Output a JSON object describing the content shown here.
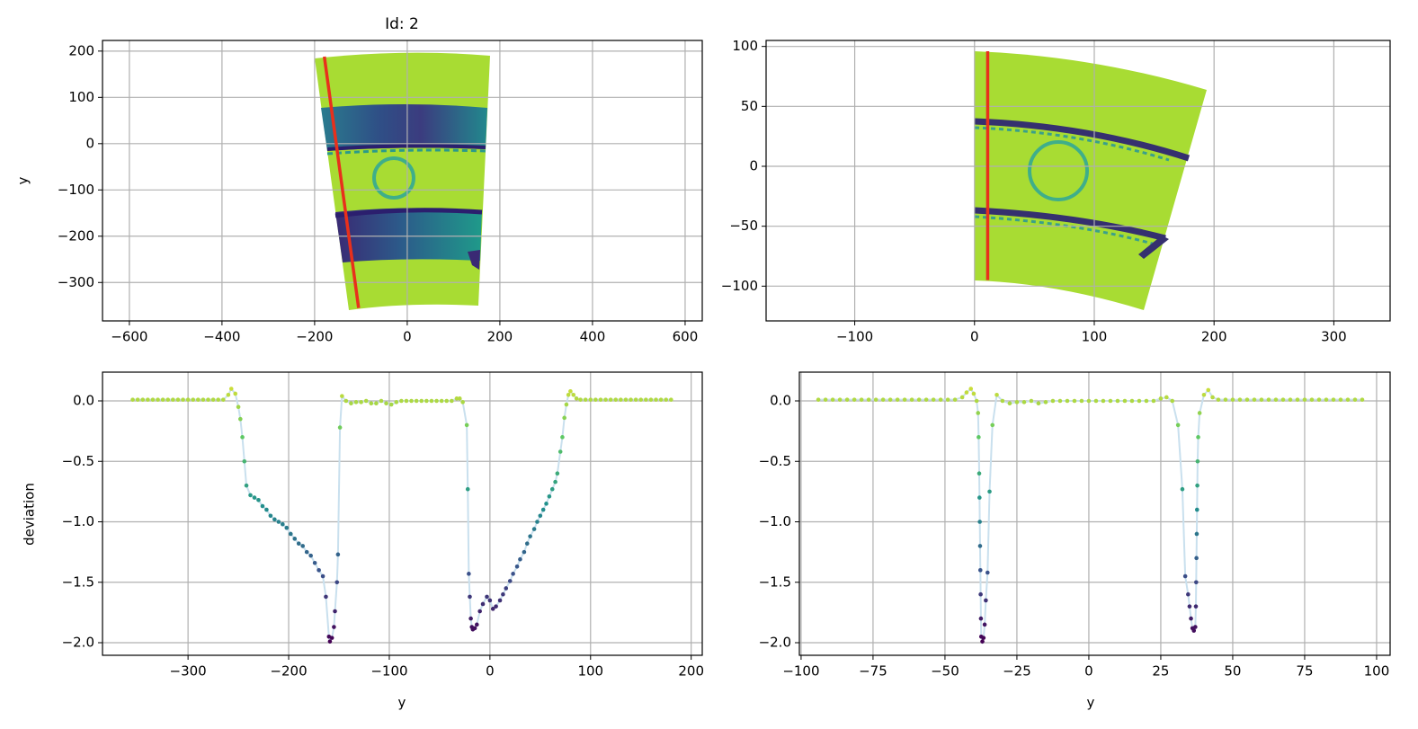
{
  "chart_data": [
    {
      "type": "image",
      "title": "Id: 2",
      "y_label": "y",
      "xlim": [
        -658,
        637
      ],
      "ylim": [
        -383,
        223
      ],
      "xticks": [
        {
          "value": -600,
          "label": "−600"
        },
        {
          "value": -400,
          "label": "−400"
        },
        {
          "value": -200,
          "label": "−200"
        },
        0,
        200,
        400,
        600
      ],
      "yticks": [
        {
          "value": -300,
          "label": "−300"
        },
        {
          "value": -200,
          "label": "−200"
        },
        {
          "value": -100,
          "label": "−100"
        },
        0,
        100,
        200
      ],
      "grid": true,
      "overlay": {
        "color": "#e8301c",
        "x": [
          -179,
          -105
        ],
        "y": [
          188,
          -355
        ]
      }
    },
    {
      "type": "image",
      "xlim": [
        -174,
        347
      ],
      "ylim": [
        -129,
        105
      ],
      "xticks": [
        {
          "value": -100,
          "label": "−100"
        },
        0,
        100,
        200,
        300
      ],
      "yticks": [
        {
          "value": -100,
          "label": "−100"
        },
        {
          "value": -50,
          "label": "−50"
        },
        0,
        50,
        100
      ],
      "grid": true,
      "overlay": {
        "color": "#e8301c",
        "x": [
          11,
          11
        ],
        "y": [
          96,
          -95
        ]
      }
    },
    {
      "type": "scatter",
      "x_label": "y",
      "y_label": "deviation",
      "xlim": [
        -385,
        211
      ],
      "ylim": [
        -2.104,
        0.238
      ],
      "xticks": [
        {
          "value": -300,
          "label": "−300"
        },
        {
          "value": -200,
          "label": "−200"
        },
        {
          "value": -100,
          "label": "−100"
        },
        0,
        100,
        200
      ],
      "yticks": [
        {
          "value": -2,
          "label": "−2.0"
        },
        {
          "value": -1.5,
          "label": "−1.5"
        },
        {
          "value": -1,
          "label": "−1.0"
        },
        {
          "value": -0.5,
          "label": "−0.5"
        },
        {
          "value": 0,
          "label": "0.0"
        }
      ],
      "grid": true,
      "colormap": "viridis",
      "line_color": "#c9e0ee",
      "x": [
        -355,
        -350,
        -345,
        -340,
        -335,
        -330,
        -325,
        -320,
        -315,
        -310,
        -305,
        -300,
        -295,
        -290,
        -285,
        -280,
        -275,
        -270,
        -265,
        -260,
        -257,
        -253,
        -250,
        -248,
        -246,
        -244,
        -242,
        -238,
        -234,
        -230,
        -226,
        -222,
        -218,
        -214,
        -210,
        -206,
        -202,
        -198,
        -194,
        -190,
        -186,
        -182,
        -178,
        -174,
        -170,
        -166,
        -163,
        -160,
        -159,
        -157,
        -155,
        -154,
        -152,
        -151,
        -149,
        -147,
        -143,
        -138,
        -133,
        -128,
        -123,
        -118,
        -113,
        -108,
        -103,
        -98,
        -93,
        -88,
        -83,
        -78,
        -73,
        -68,
        -63,
        -58,
        -53,
        -48,
        -43,
        -38,
        -33,
        -30,
        -27,
        -23,
        -22,
        -21,
        -20,
        -19,
        -18,
        -17,
        -15,
        -13,
        -10,
        -7,
        -3,
        0,
        3,
        6,
        10,
        13,
        16,
        20,
        23,
        27,
        30,
        34,
        37,
        40,
        44,
        47,
        50,
        53,
        56,
        59,
        62,
        65,
        67,
        70,
        72,
        74,
        76,
        78,
        80,
        83,
        86,
        90,
        95,
        100,
        105,
        110,
        115,
        120,
        125,
        130,
        135,
        140,
        145,
        150,
        155,
        160,
        165,
        170,
        175,
        180
      ],
      "values": [
        0.01,
        0.01,
        0.01,
        0.01,
        0.01,
        0.01,
        0.01,
        0.01,
        0.01,
        0.01,
        0.01,
        0.01,
        0.01,
        0.01,
        0.01,
        0.01,
        0.01,
        0.01,
        0.01,
        0.05,
        0.1,
        0.06,
        -0.05,
        -0.15,
        -0.3,
        -0.5,
        -0.7,
        -0.78,
        -0.8,
        -0.82,
        -0.87,
        -0.9,
        -0.95,
        -0.98,
        -1.0,
        -1.02,
        -1.05,
        -1.1,
        -1.14,
        -1.18,
        -1.2,
        -1.25,
        -1.28,
        -1.34,
        -1.4,
        -1.45,
        -1.62,
        -1.95,
        -1.99,
        -1.96,
        -1.87,
        -1.74,
        -1.5,
        -1.27,
        -0.22,
        0.04,
        0.0,
        -0.02,
        -0.01,
        -0.01,
        0.0,
        -0.02,
        -0.02,
        0.0,
        -0.02,
        -0.03,
        -0.01,
        0.0,
        0.0,
        0,
        0,
        0,
        0,
        0,
        0,
        0,
        0,
        0,
        0.02,
        0.02,
        -0.01,
        -0.2,
        -0.73,
        -1.43,
        -1.62,
        -1.8,
        -1.87,
        -1.89,
        -1.88,
        -1.85,
        -1.74,
        -1.68,
        -1.62,
        -1.65,
        -1.72,
        -1.7,
        -1.65,
        -1.6,
        -1.55,
        -1.49,
        -1.43,
        -1.37,
        -1.31,
        -1.25,
        -1.18,
        -1.12,
        -1.06,
        -1.0,
        -0.95,
        -0.9,
        -0.85,
        -0.79,
        -0.73,
        -0.67,
        -0.6,
        -0.42,
        -0.3,
        -0.14,
        -0.03,
        0.05,
        0.08,
        0.05,
        0.02,
        0.01,
        0.01,
        0.01,
        0.01,
        0.01,
        0.01,
        0.01,
        0.01,
        0.01,
        0.01,
        0.01,
        0.01,
        0.01,
        0.01,
        0.01,
        0.01,
        0.01,
        0.01,
        0.01
      ]
    },
    {
      "type": "scatter",
      "x_label": "y",
      "xlim": [
        -100.6,
        104.7
      ],
      "ylim": [
        -2.104,
        0.238
      ],
      "xticks": [
        {
          "value": -100,
          "label": "−100"
        },
        {
          "value": -75,
          "label": "−75"
        },
        {
          "value": -50,
          "label": "−50"
        },
        {
          "value": -25,
          "label": "−25"
        },
        0,
        25,
        50,
        75,
        100
      ],
      "yticks": [
        {
          "value": -2,
          "label": "−2.0"
        },
        {
          "value": -1.5,
          "label": "−1.5"
        },
        {
          "value": -1,
          "label": "−1.0"
        },
        {
          "value": -0.5,
          "label": "−0.5"
        },
        {
          "value": 0,
          "label": "0.0"
        }
      ],
      "grid": true,
      "colormap": "viridis",
      "line_color": "#c9e0ee",
      "x": [
        -94,
        -91.5,
        -89,
        -86.5,
        -84,
        -81.5,
        -79,
        -76.5,
        -74,
        -71.5,
        -69,
        -66.5,
        -64,
        -61.5,
        -59,
        -56.5,
        -54,
        -51.5,
        -49,
        -46.5,
        -44,
        -42.5,
        -41,
        -40,
        -39,
        -38.5,
        -38.3,
        -38.1,
        -38,
        -37.9,
        -37.8,
        -37.7,
        -37.6,
        -37.5,
        -37.4,
        -37,
        -36.6,
        -36.2,
        -35.8,
        -35.2,
        -34.5,
        -33.5,
        -32,
        -30,
        -27.5,
        -25,
        -22.5,
        -20,
        -17.5,
        -15,
        -12.5,
        -10,
        -7.5,
        -5,
        -2.5,
        0,
        2.5,
        5,
        7.5,
        10,
        12.5,
        15,
        17.5,
        20,
        22.5,
        25,
        27,
        29,
        31,
        32.5,
        33.5,
        34.5,
        35,
        35.5,
        36,
        36.5,
        37,
        37.2,
        37.3,
        37.4,
        37.5,
        37.6,
        37.7,
        37.8,
        38,
        38.5,
        40,
        41.5,
        43,
        45,
        47.5,
        50,
        52.5,
        55,
        57.5,
        60,
        62.5,
        65,
        67.5,
        70,
        72.5,
        75,
        77.5,
        80,
        82.5,
        85,
        87.5,
        90,
        92.5,
        95
      ],
      "values": [
        0.01,
        0.01,
        0.01,
        0.01,
        0.01,
        0.01,
        0.01,
        0.01,
        0.01,
        0.01,
        0.01,
        0.01,
        0.01,
        0.01,
        0.01,
        0.01,
        0.01,
        0.01,
        0.01,
        0.01,
        0.03,
        0.07,
        0.1,
        0.06,
        0.0,
        -0.1,
        -0.3,
        -0.6,
        -0.8,
        -1.0,
        -1.2,
        -1.4,
        -1.6,
        -1.8,
        -1.95,
        -1.99,
        -1.96,
        -1.85,
        -1.65,
        -1.42,
        -0.75,
        -0.2,
        0.05,
        0.0,
        -0.02,
        -0.01,
        -0.01,
        0.0,
        -0.02,
        -0.01,
        0.0,
        0,
        0,
        0,
        0,
        0,
        0,
        0,
        0,
        0,
        0,
        0,
        0,
        0,
        0,
        0.02,
        0.03,
        0.0,
        -0.2,
        -0.73,
        -1.45,
        -1.6,
        -1.7,
        -1.8,
        -1.88,
        -1.9,
        -1.87,
        -1.7,
        -1.5,
        -1.3,
        -1.1,
        -0.9,
        -0.7,
        -0.5,
        -0.3,
        -0.1,
        0.05,
        0.09,
        0.03,
        0.01,
        0.01,
        0.01,
        0.01,
        0.01,
        0.01,
        0.01,
        0.01,
        0.01,
        0.01,
        0.01,
        0.01,
        0.01,
        0.01,
        0.01,
        0.01,
        0.01,
        0.01,
        0.01,
        0.01,
        0.01
      ]
    }
  ]
}
